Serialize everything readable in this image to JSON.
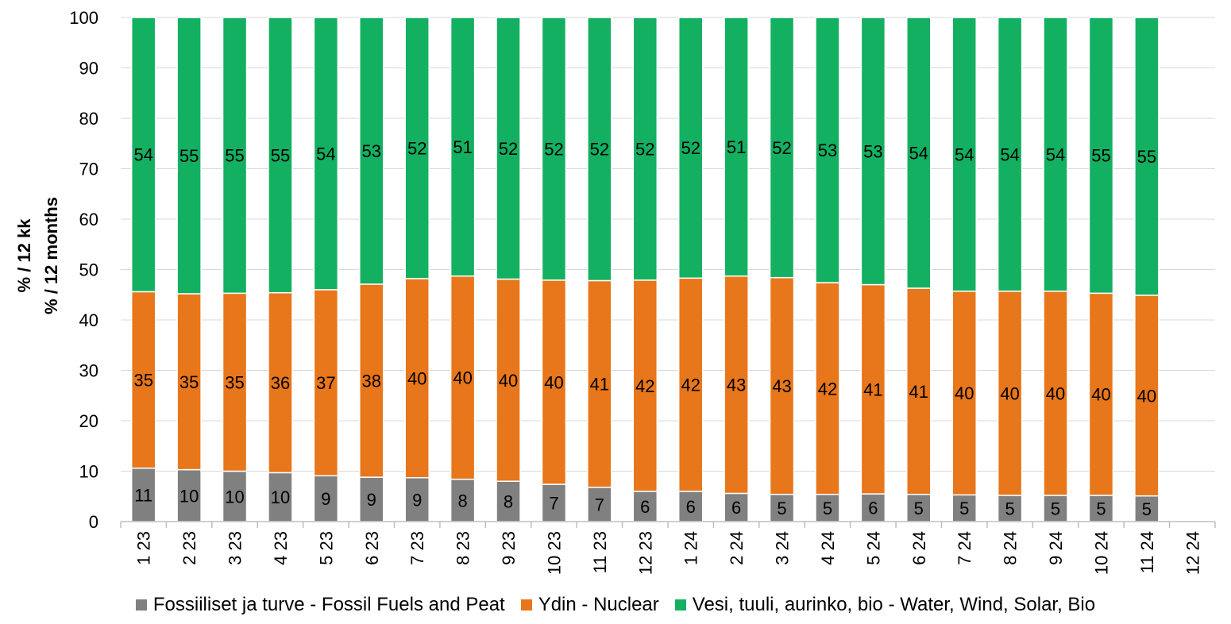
{
  "chart_data": {
    "type": "bar",
    "stacked": true,
    "ylabel_line1": "% / 12 kk",
    "ylabel_line2": "% / 12 months",
    "ylim": [
      0,
      100
    ],
    "yticks": [
      0,
      10,
      20,
      30,
      40,
      50,
      60,
      70,
      80,
      90,
      100
    ],
    "grid": true,
    "legend_position": "bottom",
    "categories": [
      "1 23",
      "2 23",
      "3 23",
      "4 23",
      "5 23",
      "6 23",
      "7 23",
      "8 23",
      "9 23",
      "10 23",
      "11 23",
      "12 23",
      "1 24",
      "2 24",
      "3 24",
      "4 24",
      "5 24",
      "6 24",
      "7 24",
      "8 24",
      "9 24",
      "10 24",
      "11 24",
      "12 24"
    ],
    "series": [
      {
        "name": "Fossiiliset ja turve - Fossil Fuels and Peat",
        "color": "#808080",
        "values": [
          10.6,
          10.3,
          10.0,
          9.7,
          9.1,
          8.8,
          8.7,
          8.4,
          8.0,
          7.4,
          6.8,
          6.0,
          6.0,
          5.6,
          5.4,
          5.4,
          5.5,
          5.4,
          5.3,
          5.2,
          5.2,
          5.2,
          5.1,
          null
        ],
        "labels": [
          "11",
          "10",
          "10",
          "10",
          "9",
          "9",
          "9",
          "8",
          "8",
          "7",
          "7",
          "6",
          "6",
          "6",
          "5",
          "5",
          "6",
          "5",
          "5",
          "5",
          "5",
          "5",
          "5",
          ""
        ]
      },
      {
        "name": "Ydin - Nuclear",
        "color": "#E8761A",
        "values": [
          35.0,
          34.9,
          35.3,
          35.7,
          36.9,
          38.3,
          39.5,
          40.3,
          40.1,
          40.5,
          41.0,
          41.9,
          42.3,
          43.1,
          43.0,
          42.0,
          41.5,
          40.9,
          40.4,
          40.5,
          40.5,
          40.1,
          39.8,
          null
        ],
        "labels": [
          "35",
          "35",
          "35",
          "36",
          "37",
          "38",
          "40",
          "40",
          "40",
          "40",
          "41",
          "42",
          "42",
          "43",
          "43",
          "42",
          "41",
          "41",
          "40",
          "40",
          "40",
          "40",
          "40",
          ""
        ]
      },
      {
        "name": "Vesi, tuuli, aurinko, bio - Water, Wind, Solar, Bio",
        "color": "#14B062",
        "values": [
          54.4,
          54.8,
          54.7,
          54.6,
          54.0,
          52.9,
          51.8,
          51.3,
          51.9,
          52.1,
          52.2,
          52.1,
          51.7,
          51.3,
          51.6,
          52.6,
          53.0,
          53.7,
          54.3,
          54.3,
          54.3,
          54.7,
          55.1,
          null
        ],
        "labels": [
          "54",
          "55",
          "55",
          "55",
          "54",
          "53",
          "52",
          "51",
          "52",
          "52",
          "52",
          "52",
          "52",
          "51",
          "52",
          "53",
          "53",
          "54",
          "54",
          "54",
          "54",
          "55",
          "55",
          ""
        ]
      }
    ]
  }
}
